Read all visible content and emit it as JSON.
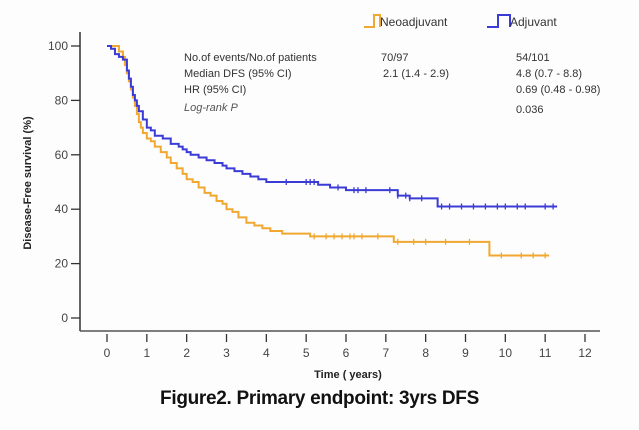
{
  "chart_data": {
    "type": "line",
    "subtype": "kaplan-meier step curves",
    "title": "",
    "xlabel": "Time ( years)",
    "ylabel": "Disease-Free survival (%)",
    "xlim": [
      0,
      12
    ],
    "ylim": [
      0,
      100
    ],
    "xticks": [
      "0",
      "1",
      "2",
      "3",
      "4",
      "5",
      "6",
      "7",
      "8",
      "9",
      "10",
      "11",
      "12"
    ],
    "yticks": [
      "0",
      "20",
      "40",
      "60",
      "80",
      "100"
    ],
    "grid": false,
    "legend": {
      "placement": "top-right",
      "entries": [
        "Neoadjuvant",
        "Adjuvant"
      ]
    },
    "series": [
      {
        "name": "Neoadjuvant",
        "color": "#f0a830",
        "x": [
          0,
          0.2,
          0.3,
          0.4,
          0.45,
          0.5,
          0.55,
          0.6,
          0.65,
          0.7,
          0.75,
          0.8,
          0.85,
          0.9,
          1.0,
          1.1,
          1.2,
          1.35,
          1.5,
          1.6,
          1.75,
          1.9,
          2.0,
          2.15,
          2.3,
          2.45,
          2.6,
          2.75,
          2.9,
          3.0,
          3.15,
          3.3,
          3.5,
          3.7,
          3.9,
          4.1,
          4.4,
          4.8,
          5.1,
          5.4,
          5.7,
          6.0,
          6.5,
          7.0,
          7.2,
          8.0,
          9.0,
          9.6,
          10.0,
          11.1
        ],
        "y": [
          100,
          100,
          98,
          96,
          93,
          90,
          87,
          84,
          81,
          78,
          75,
          72,
          70,
          68,
          66,
          65,
          63,
          61,
          59,
          57,
          55,
          53,
          51,
          50,
          48,
          46,
          45,
          43,
          42,
          40,
          39,
          37,
          35,
          34,
          33,
          32,
          31,
          31,
          30,
          30,
          30,
          30,
          30,
          30,
          28,
          28,
          28,
          23,
          23,
          23
        ],
        "censor_x": [
          5.2,
          5.5,
          5.7,
          5.9,
          6.1,
          6.2,
          6.4,
          6.8,
          7.3,
          7.7,
          8.0,
          8.5,
          9.1,
          9.9,
          10.4,
          10.7,
          11.0
        ],
        "events": "70/97",
        "median_dfs": "2.1 (1.4 - 2.9)"
      },
      {
        "name": "Adjuvant",
        "color": "#3b3bd6",
        "x": [
          0,
          0.1,
          0.2,
          0.3,
          0.4,
          0.5,
          0.55,
          0.6,
          0.65,
          0.7,
          0.75,
          0.8,
          0.9,
          1.0,
          1.1,
          1.2,
          1.4,
          1.6,
          1.8,
          1.9,
          2.0,
          2.1,
          2.3,
          2.5,
          2.7,
          2.9,
          3.0,
          3.2,
          3.4,
          3.6,
          3.8,
          4.0,
          4.2,
          4.5,
          5.0,
          5.3,
          5.6,
          6.0,
          6.5,
          7.0,
          7.3,
          7.6,
          8.3,
          9.0,
          10.0,
          11.3
        ],
        "y": [
          100,
          99,
          97,
          96,
          95,
          91,
          88,
          85,
          82,
          80,
          78,
          76,
          73,
          70,
          69,
          67,
          66,
          64,
          63,
          62,
          61,
          60,
          59,
          58,
          57,
          56,
          55,
          54,
          53,
          52,
          51,
          50,
          50,
          50,
          50,
          49,
          48,
          47,
          47,
          47,
          45,
          44,
          41,
          41,
          41,
          41
        ],
        "censor_x": [
          4.5,
          5.0,
          5.1,
          5.2,
          5.8,
          6.2,
          6.3,
          6.5,
          7.1,
          7.3,
          7.5,
          7.6,
          7.9,
          8.4,
          8.6,
          8.9,
          9.2,
          9.5,
          9.8,
          10.0,
          10.3,
          10.5,
          11.0,
          11.2
        ],
        "events": "54/101",
        "median_dfs": "4.8 (0.7 - 8.8)"
      }
    ]
  },
  "stats_table": {
    "rows": [
      {
        "label": "No.of events/No.of patients",
        "neo": "70/97",
        "adj": "54/101",
        "italic": false
      },
      {
        "label": "Median DFS (95% CI)",
        "neo": "2.1 (1.4 - 2.9)",
        "adj": "4.8 (0.7 - 8.8)",
        "italic": false
      },
      {
        "label": "HR (95% CI)",
        "neo": "",
        "adj": "0.69 (0.48 - 0.98)",
        "italic": false
      },
      {
        "label": "Log-rank P",
        "neo": "",
        "adj": "0.036",
        "italic": true
      }
    ]
  },
  "caption": "Figure2. Primary endpoint: 3yrs DFS"
}
